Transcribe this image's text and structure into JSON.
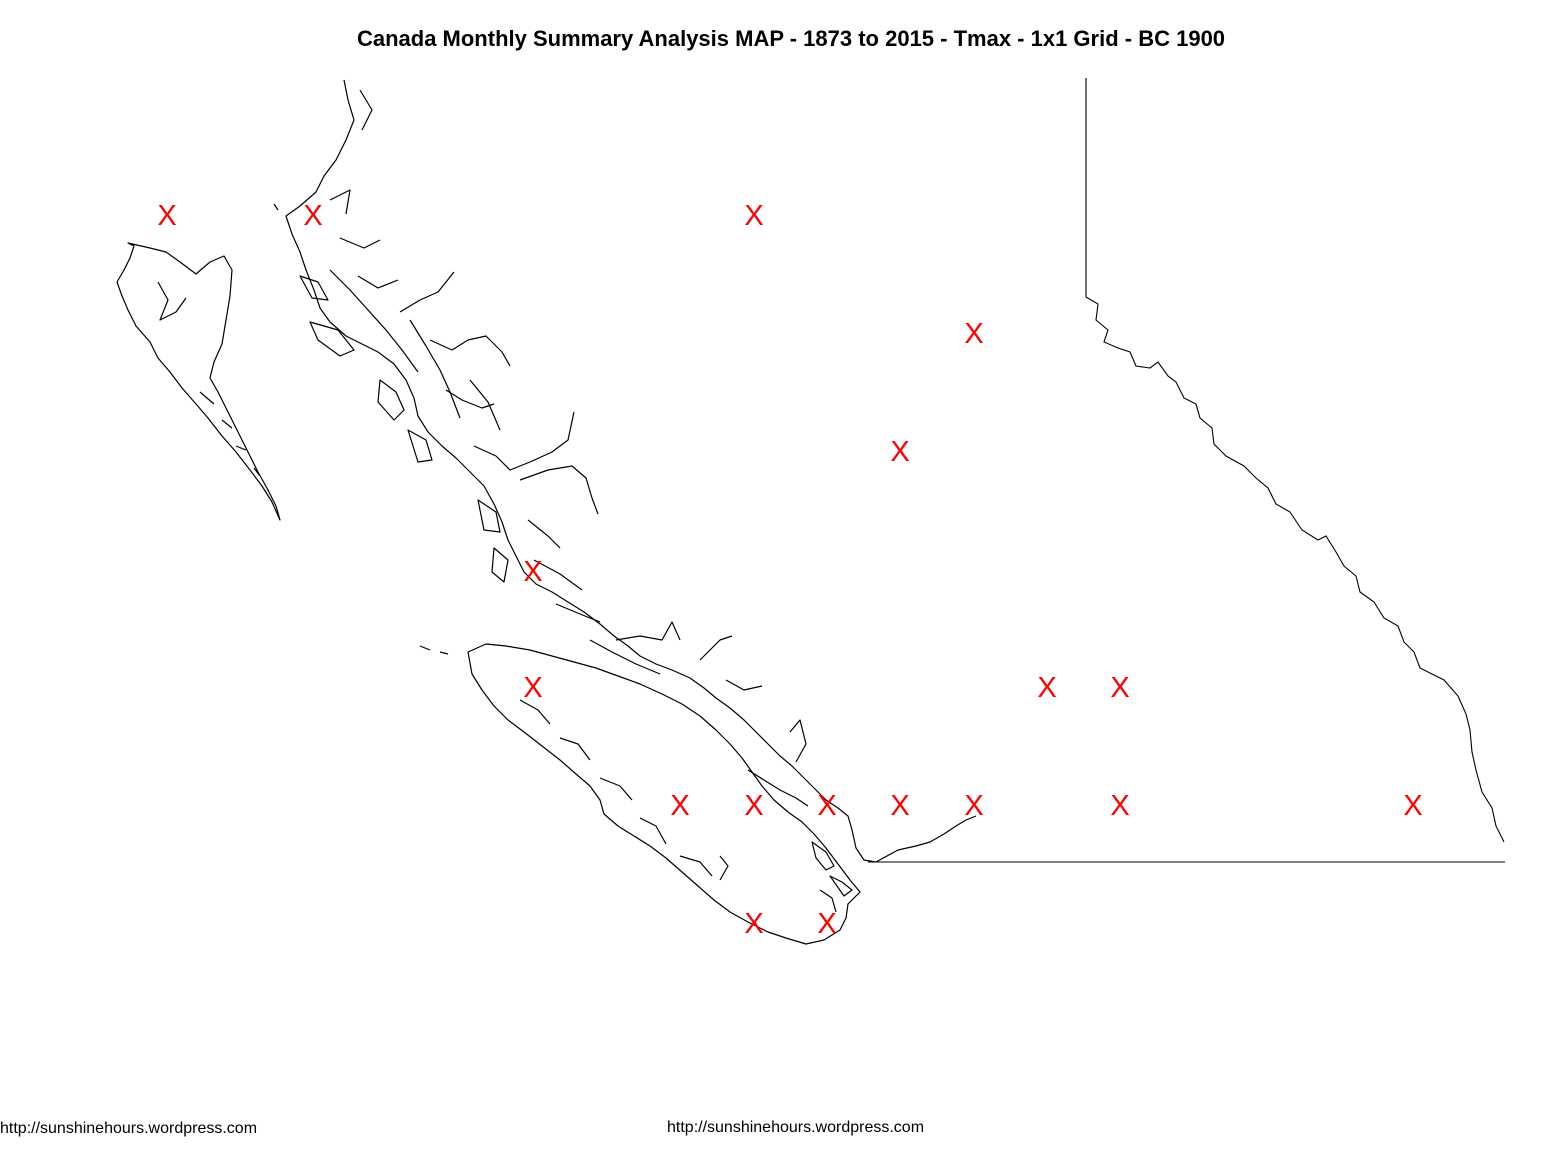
{
  "title": "Canada Monthly Summary Analysis MAP - 1873 to 2015 - Tmax - 1x1 Grid - BC 1900",
  "marker_glyph": "X",
  "marker_color": "#ff0000",
  "outline_color": "#000000",
  "credits": {
    "left": "http://sunshinehours.wordpress.com",
    "center": "http://sunshinehours.wordpress.com"
  }
}
